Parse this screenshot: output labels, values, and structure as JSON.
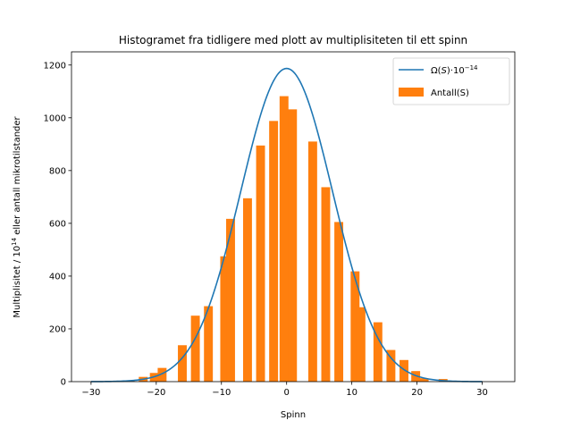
{
  "chart_data": {
    "type": "bar",
    "title": "Histogramet fra tidligere med plott av multiplisiteten til ett spinn",
    "xlabel": "Spinn",
    "ylabel_parts": [
      "Multiplisitet / 10",
      "14",
      " eller antall mikrotilstander"
    ],
    "xlim": [
      -33,
      35
    ],
    "ylim": [
      0,
      1250
    ],
    "xticks": [
      -30,
      -20,
      -10,
      0,
      10,
      20,
      30
    ],
    "xtick_labels": [
      "−30",
      "−20",
      "−10",
      "0",
      "10",
      "20",
      "30"
    ],
    "yticks": [
      0,
      200,
      400,
      600,
      800,
      1000,
      1200
    ],
    "ytick_labels": [
      "0",
      "200",
      "400",
      "600",
      "800",
      "1000",
      "1200"
    ],
    "grid": false,
    "legend_placement": "top-right",
    "colors": {
      "line": "#1f77b4",
      "bars": "#ff7f0e"
    },
    "legend": [
      {
        "kind": "line",
        "parts": [
          "Ω(",
          "S",
          ")·10",
          "−14"
        ]
      },
      {
        "kind": "bar",
        "parts": [
          "Antall(S)"
        ]
      }
    ],
    "line_series": {
      "name": "Ω(S)·10⁻¹⁴",
      "type": "gaussian",
      "peak": 1187,
      "center": 0,
      "sigma": 7.05,
      "x_range": [
        -30,
        30
      ]
    },
    "bar_series": {
      "name": "Antall(S)",
      "bar_width": 1.36,
      "x": [
        -24,
        -22,
        -20.3,
        -19.1,
        -16,
        -14,
        -12,
        -9.5,
        -8.6,
        -6,
        -4,
        -2,
        -0.4,
        0.9,
        4,
        6,
        8,
        10.5,
        11.4,
        14,
        16,
        18,
        19.8,
        21.1,
        24
      ],
      "values": [
        5,
        18,
        33,
        52,
        138,
        250,
        286,
        475,
        617,
        695,
        895,
        988,
        1082,
        1032,
        910,
        737,
        605,
        418,
        282,
        225,
        120,
        82,
        40,
        13,
        10
      ]
    }
  }
}
